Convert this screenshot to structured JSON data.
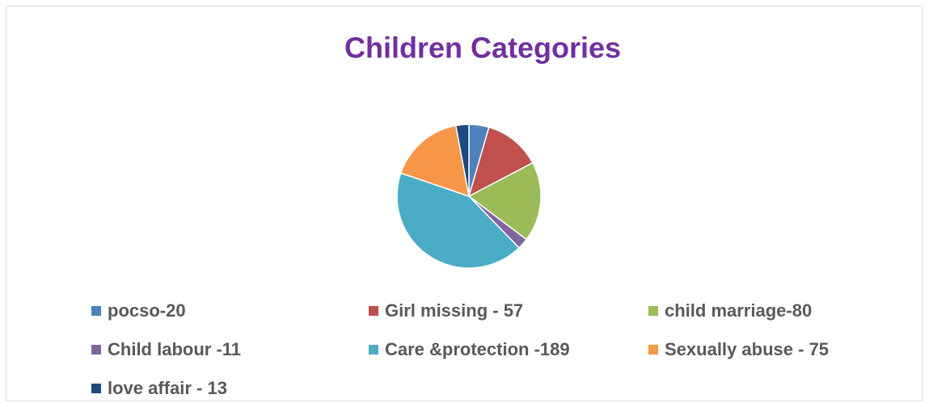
{
  "chart_data": {
    "type": "pie",
    "title": "Children Categories",
    "categories": [
      "pocso-20",
      "Girl missing - 57",
      "child marriage-80",
      "Child labour -11",
      "Care &protection -189",
      "Sexually abuse - 75",
      "love affair - 13"
    ],
    "values": [
      20,
      57,
      80,
      11,
      189,
      75,
      13
    ],
    "colors": [
      "#4f81bd",
      "#c0504d",
      "#9bbb59",
      "#8064a2",
      "#4bacc6",
      "#f79646",
      "#1f497d"
    ],
    "legend": "bottom"
  }
}
